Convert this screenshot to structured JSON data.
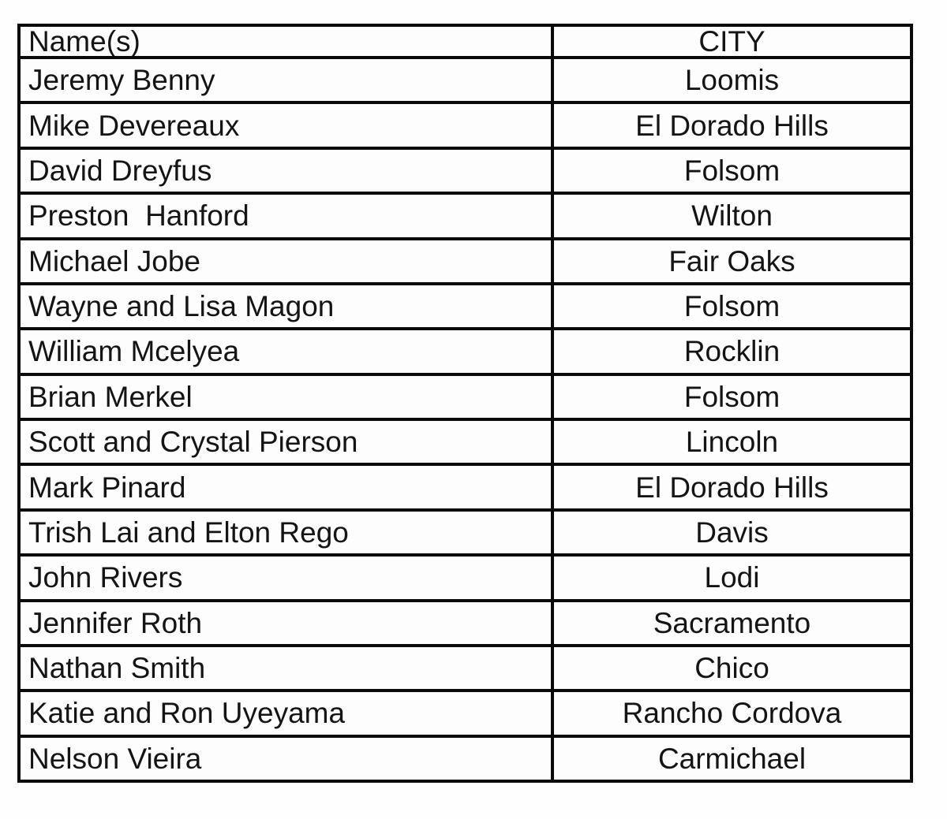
{
  "table": {
    "columns": {
      "name_header": "Name(s)",
      "city_header": "CITY"
    },
    "rows": [
      {
        "name": "Jeremy Benny",
        "city": "Loomis"
      },
      {
        "name": "Mike Devereaux",
        "city": "El Dorado Hills"
      },
      {
        "name": "David Dreyfus",
        "city": "Folsom"
      },
      {
        "name": "Preston  Hanford",
        "city": "Wilton"
      },
      {
        "name": "Michael Jobe",
        "city": "Fair Oaks"
      },
      {
        "name": "Wayne and Lisa Magon",
        "city": "Folsom"
      },
      {
        "name": "William Mcelyea",
        "city": "Rocklin"
      },
      {
        "name": "Brian Merkel",
        "city": "Folsom"
      },
      {
        "name": "Scott and Crystal Pierson",
        "city": "Lincoln"
      },
      {
        "name": "Mark Pinard",
        "city": "El Dorado Hills"
      },
      {
        "name": "Trish Lai and Elton Rego",
        "city": "Davis"
      },
      {
        "name": "John Rivers",
        "city": "Lodi"
      },
      {
        "name": "Jennifer Roth",
        "city": "Sacramento"
      },
      {
        "name": "Nathan Smith",
        "city": "Chico"
      },
      {
        "name": "Katie and Ron Uyeyama",
        "city": "Rancho Cordova"
      },
      {
        "name": "Nelson Vieira",
        "city": "Carmichael"
      }
    ],
    "colors": {
      "border": "#0a0a0a",
      "text": "#141414",
      "cell_background": "#fdfdfd"
    }
  }
}
